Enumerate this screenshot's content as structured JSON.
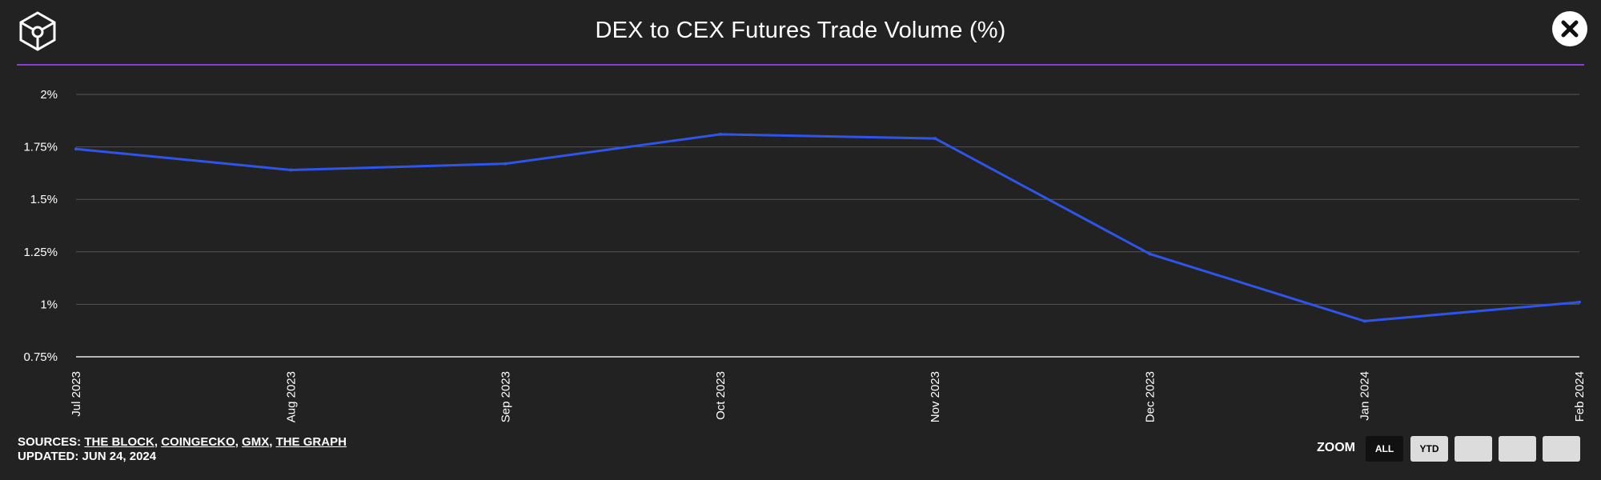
{
  "header": {
    "title": "DEX to CEX Futures Trade Volume (%)",
    "logo_icon": "cube-logo-icon",
    "close_icon": "close-icon"
  },
  "colors": {
    "background": "#222222",
    "accent_line": "#8b3fd4",
    "series_line": "#2f55e8",
    "grid": "#555555"
  },
  "chart_data": {
    "type": "line",
    "title": "DEX to CEX Futures Trade Volume (%)",
    "xlabel": "",
    "ylabel": "",
    "categories": [
      "Jul 2023",
      "Aug 2023",
      "Sep 2023",
      "Oct 2023",
      "Nov 2023",
      "Dec 2023",
      "Jan 2024",
      "Feb 2024"
    ],
    "series": [
      {
        "values": [
          1.74,
          1.64,
          1.67,
          1.81,
          1.79,
          1.24,
          0.92,
          1.01
        ]
      }
    ],
    "ylim": [
      0.75,
      2
    ],
    "yticks": [
      0.75,
      1,
      1.25,
      1.5,
      1.75,
      2
    ],
    "ytick_labels": [
      "0.75%",
      "1%",
      "1.25%",
      "1.5%",
      "1.75%",
      "2%"
    ],
    "grid": true,
    "legend": "none"
  },
  "footer": {
    "sources_prefix": "SOURCES: ",
    "sources": [
      "THE BLOCK",
      "COINGECKO",
      "GMX",
      "THE GRAPH"
    ],
    "updated": "UPDATED: JUN 24, 2024"
  },
  "zoom": {
    "label": "ZOOM",
    "buttons": [
      {
        "label": "ALL",
        "active": true
      },
      {
        "label": "YTD",
        "active": false
      },
      {
        "label": "",
        "active": false
      },
      {
        "label": "",
        "active": false
      },
      {
        "label": "",
        "active": false
      }
    ]
  }
}
